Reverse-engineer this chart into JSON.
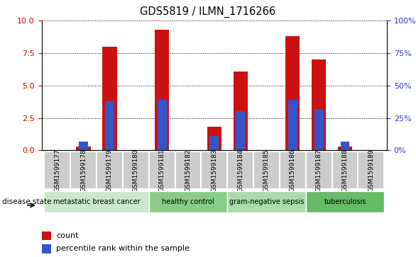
{
  "title": "GDS5819 / ILMN_1716266",
  "samples": [
    "GSM1599177",
    "GSM1599178",
    "GSM1599179",
    "GSM1599180",
    "GSM1599181",
    "GSM1599182",
    "GSM1599183",
    "GSM1599184",
    "GSM1599185",
    "GSM1599186",
    "GSM1599187",
    "GSM1599188",
    "GSM1599189"
  ],
  "count_values": [
    0,
    0.3,
    8.0,
    0,
    9.3,
    0,
    1.8,
    6.1,
    0,
    8.8,
    7.0,
    0.3,
    0
  ],
  "percentile_values": [
    0,
    7,
    38,
    0,
    39,
    0,
    11,
    30,
    0,
    39,
    32,
    7,
    0
  ],
  "ylim_left": [
    0,
    10
  ],
  "ylim_right": [
    0,
    100
  ],
  "yticks_left": [
    0,
    2.5,
    5,
    7.5,
    10
  ],
  "yticks_right": [
    0,
    25,
    50,
    75,
    100
  ],
  "disease_groups": [
    {
      "label": "metastatic breast cancer",
      "start": 0,
      "end": 4,
      "color": "#cce8cc"
    },
    {
      "label": "healthy control",
      "start": 4,
      "end": 7,
      "color": "#88cc88"
    },
    {
      "label": "gram-negative sepsis",
      "start": 7,
      "end": 10,
      "color": "#aaddaa"
    },
    {
      "label": "tuberculosis",
      "start": 10,
      "end": 13,
      "color": "#66bb66"
    }
  ],
  "bar_color_red": "#cc1111",
  "bar_color_blue": "#3355cc",
  "bar_width": 0.55,
  "blue_bar_width": 0.35,
  "background_color": "#ffffff",
  "plot_bg_color": "#ffffff",
  "tick_color_left": "#cc0000",
  "tick_color_right": "#3333cc",
  "disease_state_label": "disease state",
  "legend_count": "count",
  "legend_percentile": "percentile rank within the sample",
  "sample_box_color": "#cccccc",
  "sample_box_border": "#ffffff"
}
